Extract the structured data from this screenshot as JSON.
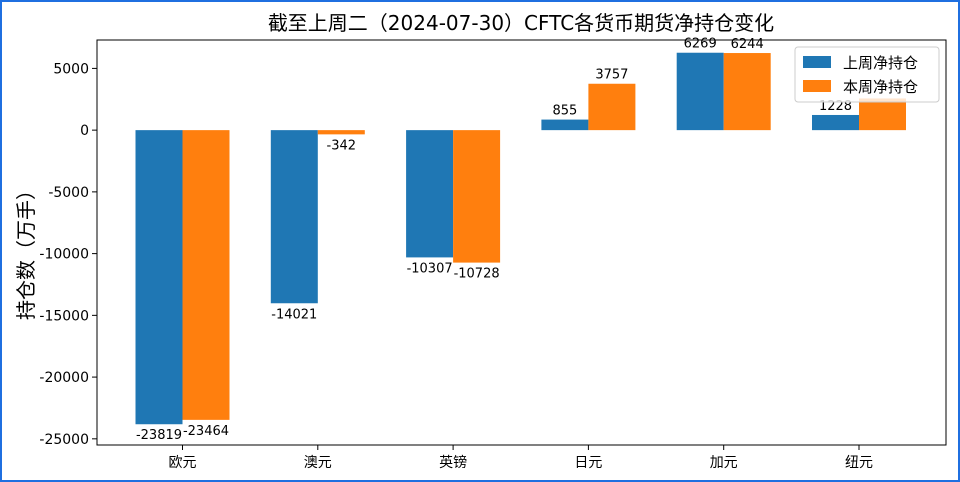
{
  "chart_data": {
    "type": "bar",
    "title": "截至上周二（2024-07-30）CFTC各货币期货净持仓变化",
    "xlabel": "",
    "ylabel": "持仓数（万手）",
    "categories": [
      "欧元",
      "澳元",
      "英镑",
      "日元",
      "加元",
      "纽元"
    ],
    "series": [
      {
        "name": "上周净持仓",
        "color": "#1f77b4",
        "values": [
          -23819,
          -14021,
          -10307,
          855,
          6269,
          1228
        ]
      },
      {
        "name": "本周净持仓",
        "color": "#ff7f0e",
        "values": [
          -23464,
          -342,
          -10728,
          3757,
          6244,
          2566
        ]
      }
    ],
    "data_labels": {
      "上周净持仓": [
        "-23819",
        "-14021",
        "-10307",
        "855",
        "6269",
        "1228"
      ],
      "本周净持仓": [
        "-23464",
        "-342",
        "-10728",
        "3757",
        "6244",
        ""
      ]
    },
    "yticks": [
      5000,
      0,
      -5000,
      -10000,
      -15000,
      -20000,
      -25000
    ],
    "ylim": [
      -25500,
      7300
    ],
    "grid": false,
    "legend_position": "top-right"
  }
}
